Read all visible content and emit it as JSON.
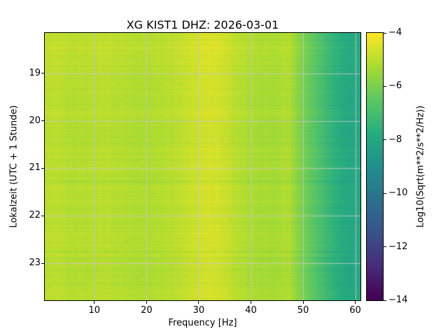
{
  "figure": {
    "title": "XG KIST1  DHZ: 2026-03-01",
    "xlabel": "Frequency [Hz]",
    "ylabel": "Lokalzeit (UTC + 1 Stunde)",
    "colorbar_label": "Log10(Sqrt(m**2/s**2/Hz))"
  },
  "chart_data": {
    "type": "heatmap",
    "title": "XG KIST1  DHZ: 2026-03-01",
    "xlabel": "Frequency [Hz]",
    "ylabel": "Lokalzeit (UTC + 1 Stunde)",
    "colormap": "viridis",
    "grid": true,
    "legend_position": "colorbar-right",
    "x_range": [
      0.5,
      61.0
    ],
    "y_range": [
      18.15,
      23.78
    ],
    "x_ticks": [
      10,
      20,
      30,
      40,
      50,
      60
    ],
    "y_ticks": [
      19,
      20,
      21,
      22,
      23
    ],
    "colorbar": {
      "label": "Log10(Sqrt(m**2/s**2/Hz))",
      "range": [
        -14,
        -4
      ],
      "ticks": [
        -4,
        -6,
        -8,
        -10,
        -12,
        -14
      ]
    },
    "freq_bins": [
      1,
      3,
      5,
      7,
      9,
      11,
      13,
      15,
      17,
      19,
      21,
      23,
      25,
      27,
      29,
      31,
      33,
      35,
      37,
      39,
      41,
      43,
      45,
      47,
      49,
      51,
      53,
      55,
      57,
      59,
      61,
      62
    ],
    "time_bins": [
      18.4,
      18.9,
      19.4,
      19.9,
      20.4,
      20.9,
      21.4,
      21.9,
      22.4,
      22.9,
      23.3,
      23.7
    ],
    "values": [
      [
        -5.0,
        -4.9,
        -5.0,
        -5.05,
        -5.05,
        -5.0,
        -4.95,
        -5.0,
        -5.05,
        -5.1,
        -5.1,
        -5.05,
        -5.0,
        -4.95,
        -4.8,
        -4.65,
        -4.55,
        -4.6,
        -4.8,
        -5.0,
        -5.15,
        -5.2,
        -5.25,
        -5.2,
        -5.1,
        -5.8,
        -6.3,
        -6.8,
        -7.3,
        -7.7,
        -7.9,
        -7.9
      ],
      [
        -4.95,
        -4.85,
        -4.95,
        -5.0,
        -5.0,
        -4.95,
        -4.9,
        -4.95,
        -5.0,
        -5.05,
        -5.05,
        -5.0,
        -4.95,
        -4.9,
        -4.75,
        -4.6,
        -4.5,
        -4.55,
        -4.75,
        -4.95,
        -5.1,
        -5.15,
        -5.2,
        -5.15,
        -5.05,
        -5.75,
        -6.25,
        -6.75,
        -7.25,
        -7.65,
        -7.85,
        -7.85
      ],
      [
        -5.05,
        -4.95,
        -5.05,
        -5.1,
        -5.1,
        -5.05,
        -5.0,
        -5.05,
        -5.1,
        -5.15,
        -5.15,
        -5.1,
        -5.05,
        -5.0,
        -4.85,
        -4.7,
        -4.6,
        -4.65,
        -4.85,
        -5.05,
        -5.2,
        -5.25,
        -5.3,
        -5.25,
        -5.15,
        -5.85,
        -6.35,
        -6.85,
        -7.35,
        -7.75,
        -7.95,
        -7.95
      ],
      [
        -5.05,
        -4.95,
        -5.05,
        -5.1,
        -5.1,
        -5.05,
        -5.0,
        -5.05,
        -5.1,
        -5.15,
        -5.15,
        -5.1,
        -5.05,
        -5.0,
        -4.85,
        -4.7,
        -4.6,
        -4.65,
        -4.85,
        -5.05,
        -5.2,
        -5.25,
        -5.3,
        -5.25,
        -5.15,
        -5.85,
        -6.35,
        -6.85,
        -7.35,
        -7.75,
        -7.95,
        -7.95
      ],
      [
        -5.1,
        -5.0,
        -5.1,
        -5.15,
        -5.15,
        -5.1,
        -5.05,
        -5.1,
        -5.15,
        -5.2,
        -5.2,
        -5.15,
        -5.1,
        -5.05,
        -4.9,
        -4.75,
        -4.65,
        -4.7,
        -4.9,
        -5.1,
        -5.25,
        -5.3,
        -5.35,
        -5.3,
        -5.2,
        -5.9,
        -6.4,
        -6.9,
        -7.4,
        -7.8,
        -8.0,
        -8.0
      ],
      [
        -5.05,
        -4.95,
        -5.05,
        -5.1,
        -5.1,
        -5.05,
        -5.0,
        -5.05,
        -5.1,
        -5.15,
        -5.15,
        -5.1,
        -5.05,
        -5.0,
        -4.85,
        -4.7,
        -4.6,
        -4.65,
        -4.85,
        -5.05,
        -5.2,
        -5.25,
        -5.3,
        -5.25,
        -5.15,
        -5.85,
        -6.35,
        -6.85,
        -7.35,
        -7.75,
        -7.95,
        -7.95
      ],
      [
        -5.1,
        -5.0,
        -5.1,
        -5.15,
        -5.15,
        -5.1,
        -5.05,
        -5.1,
        -5.15,
        -5.2,
        -5.2,
        -5.15,
        -5.1,
        -5.05,
        -4.9,
        -4.75,
        -4.65,
        -4.7,
        -4.9,
        -5.1,
        -5.25,
        -5.3,
        -5.35,
        -5.3,
        -5.2,
        -5.9,
        -6.4,
        -6.9,
        -7.4,
        -7.8,
        -8.0,
        -8.0
      ],
      [
        -5.05,
        -4.95,
        -5.05,
        -5.1,
        -5.1,
        -5.05,
        -5.0,
        -5.05,
        -5.1,
        -5.15,
        -5.15,
        -5.1,
        -5.05,
        -5.0,
        -4.85,
        -4.7,
        -4.6,
        -4.65,
        -4.85,
        -5.05,
        -5.2,
        -5.25,
        -5.3,
        -5.25,
        -5.15,
        -5.85,
        -6.35,
        -6.85,
        -7.35,
        -7.75,
        -7.95,
        -7.95
      ],
      [
        -5.0,
        -4.9,
        -5.0,
        -5.05,
        -5.05,
        -5.0,
        -4.95,
        -5.0,
        -5.05,
        -5.1,
        -5.1,
        -5.05,
        -5.0,
        -4.95,
        -4.8,
        -4.65,
        -4.55,
        -4.6,
        -4.8,
        -5.0,
        -5.15,
        -5.2,
        -5.25,
        -5.2,
        -5.1,
        -5.8,
        -6.3,
        -6.8,
        -7.3,
        -7.7,
        -7.9,
        -7.9
      ],
      [
        -5.1,
        -5.0,
        -5.1,
        -5.15,
        -5.15,
        -5.1,
        -5.05,
        -5.1,
        -5.15,
        -5.2,
        -5.2,
        -5.15,
        -5.1,
        -5.05,
        -4.9,
        -4.75,
        -4.65,
        -4.7,
        -4.9,
        -5.1,
        -5.25,
        -5.3,
        -5.35,
        -5.3,
        -5.2,
        -5.9,
        -6.4,
        -6.9,
        -7.4,
        -7.8,
        -8.0,
        -8.0
      ],
      [
        -5.1,
        -5.0,
        -5.1,
        -5.15,
        -5.15,
        -5.1,
        -5.05,
        -5.1,
        -5.15,
        -5.2,
        -5.2,
        -5.15,
        -5.1,
        -5.05,
        -4.9,
        -4.75,
        -4.65,
        -4.7,
        -4.9,
        -5.1,
        -5.25,
        -5.3,
        -5.35,
        -5.3,
        -5.2,
        -5.9,
        -6.4,
        -6.9,
        -7.4,
        -7.8,
        -8.0,
        -8.0
      ],
      [
        -5.05,
        -4.95,
        -5.05,
        -5.1,
        -5.1,
        -5.05,
        -5.0,
        -5.05,
        -5.1,
        -5.15,
        -5.15,
        -5.1,
        -5.05,
        -5.0,
        -4.85,
        -4.7,
        -4.6,
        -4.65,
        -4.85,
        -5.05,
        -5.2,
        -5.25,
        -5.3,
        -5.25,
        -5.15,
        -5.85,
        -6.35,
        -6.85,
        -7.35,
        -7.75,
        -7.95,
        -7.95
      ]
    ],
    "render_hints": {
      "row_noise": 0.17,
      "pixel_noise": 0.11,
      "bright_streak": 0.28
    }
  }
}
